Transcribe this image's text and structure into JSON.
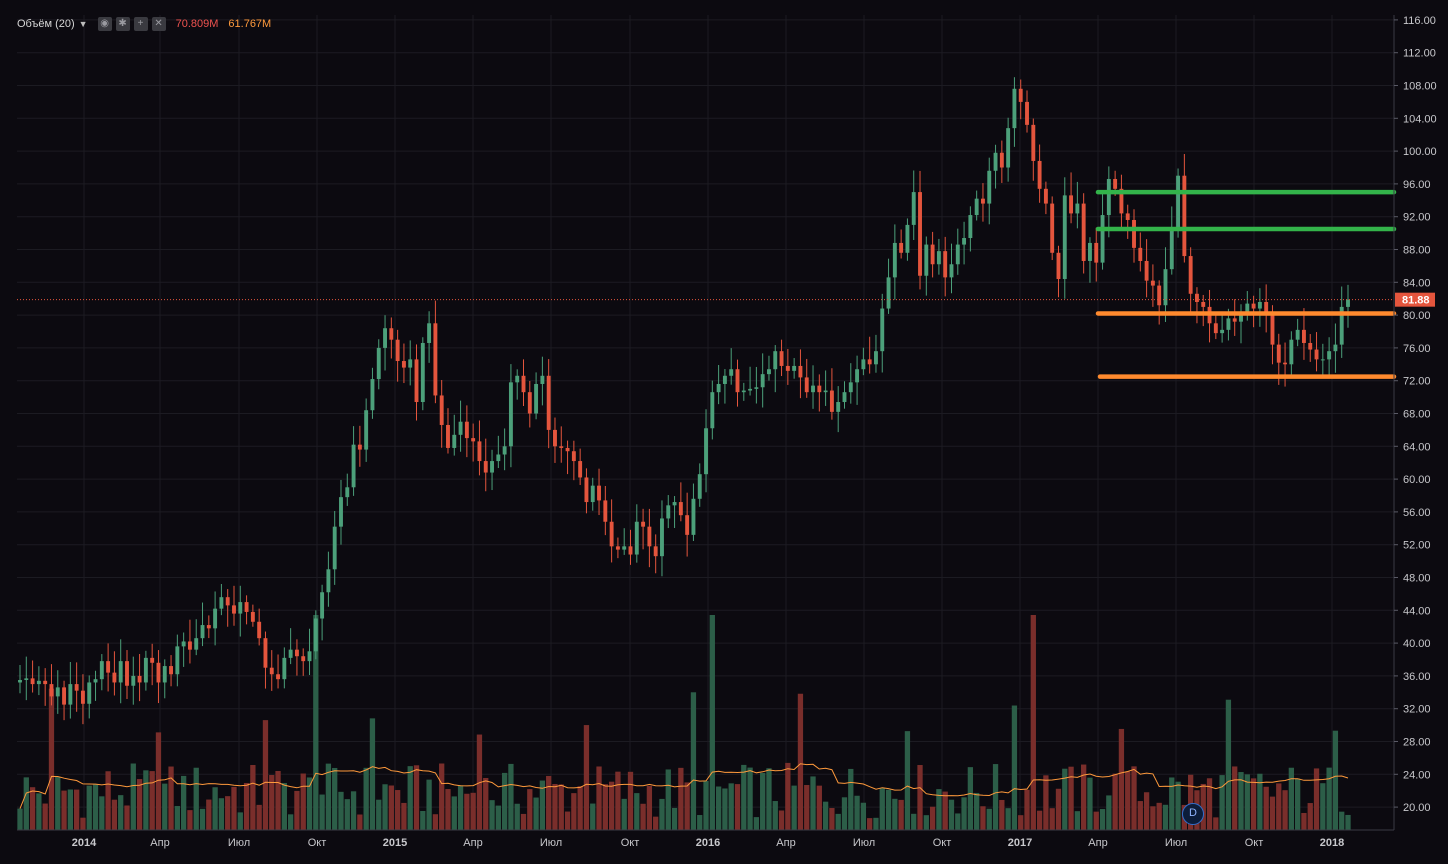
{
  "legend": {
    "indicator": "Объём (20)",
    "buttons": [
      "eye-icon",
      "gear-icon",
      "plus-icon",
      "close-icon"
    ],
    "volume_value": "70.809M",
    "ma_value": "61.767M",
    "volume_color": "#ef5350",
    "ma_color": "#ff9a3c"
  },
  "badge": {
    "label": "D"
  },
  "last_price": {
    "label": "81.88",
    "value": 81.88,
    "color": "#e4553d"
  },
  "chart_data": {
    "type": "candlestick",
    "interval": "weekly",
    "x_ticks": [
      "2014",
      "Апр",
      "Июл",
      "Окт",
      "2015",
      "Апр",
      "Июл",
      "Окт",
      "2016",
      "Апр",
      "Июл",
      "Окт",
      "2017",
      "Апр",
      "Июл",
      "Окт",
      "2018"
    ],
    "y_ticks": [
      "116.00",
      "112.00",
      "108.00",
      "104.00",
      "100.00",
      "96.00",
      "92.00",
      "88.00",
      "84.00",
      "80.00",
      "76.00",
      "72.00",
      "68.00",
      "64.00",
      "60.00",
      "56.00",
      "52.00",
      "48.00",
      "44.00",
      "40.00",
      "36.00",
      "32.00",
      "28.00",
      "24.00",
      "20.00"
    ],
    "ylim": [
      18.5,
      117
    ],
    "colors": {
      "up": "#4ca07a",
      "down": "#e4553d",
      "up_vol": "#2c5e48",
      "down_vol": "#7a2e2b",
      "ma": "#ff9a3c"
    },
    "closes": [
      35.5,
      35.7,
      35.0,
      35.4,
      35.0,
      33.5,
      34.6,
      32.5,
      35.0,
      34.2,
      32.6,
      35.2,
      35.6,
      37.8,
      36.4,
      35.2,
      37.8,
      34.8,
      36.0,
      35.2,
      38.2,
      37.6,
      35.2,
      37.2,
      36.2,
      39.6,
      40.2,
      39.2,
      40.6,
      42.2,
      41.8,
      44.2,
      45.6,
      44.6,
      43.6,
      45.0,
      43.8,
      42.6,
      40.6,
      37.0,
      36.2,
      35.6,
      38.2,
      39.2,
      38.4,
      37.8,
      39.0,
      43.0,
      46.2,
      49.0,
      54.2,
      57.8,
      59.0,
      64.2,
      63.6,
      68.4,
      72.2,
      76.0,
      78.4,
      77.0,
      74.4,
      73.6,
      74.6,
      69.4,
      76.6,
      79.0,
      70.2,
      66.6,
      63.8,
      65.4,
      67.0,
      65.0,
      64.6,
      62.2,
      60.8,
      62.2,
      63.0,
      64.0,
      71.8,
      72.6,
      70.6,
      68.0,
      71.6,
      72.6,
      66.0,
      64.0,
      63.8,
      63.4,
      62.2,
      60.2,
      57.2,
      59.2,
      57.4,
      54.8,
      51.8,
      51.4,
      51.8,
      50.8,
      54.8,
      54.2,
      51.8,
      50.6,
      55.2,
      56.8,
      57.2,
      55.6,
      53.2,
      57.6,
      60.6,
      66.2,
      70.6,
      71.6,
      72.6,
      73.4,
      70.6,
      70.8,
      71.0,
      71.2,
      72.8,
      73.4,
      75.6,
      73.8,
      73.2,
      73.8,
      72.4,
      70.6,
      71.4,
      70.6,
      70.8,
      68.2,
      69.4,
      70.6,
      71.8,
      73.4,
      74.6,
      74.0,
      75.6,
      80.8,
      84.6,
      88.8,
      87.6,
      91.0,
      95.0,
      84.8,
      88.6,
      86.2,
      87.8,
      84.6,
      86.2,
      88.6,
      89.4,
      92.2,
      94.2,
      93.6,
      97.6,
      99.8,
      98.0,
      102.8,
      107.6,
      106.0,
      103.2,
      98.8,
      95.4,
      93.6,
      87.6,
      84.4,
      94.6,
      92.4,
      93.6,
      86.6,
      88.8,
      86.4,
      92.2,
      96.6,
      95.4,
      92.4,
      91.6,
      88.2,
      86.6,
      84.2,
      83.6,
      81.2,
      85.6,
      90.6,
      97.0,
      87.2,
      82.6,
      81.6,
      81.0,
      79.0,
      77.8,
      78.2,
      79.6,
      79.2,
      80.4,
      81.4,
      80.8,
      81.6,
      80.4,
      76.4,
      74.2,
      74.0,
      77.0,
      78.2,
      76.6,
      75.8,
      74.6,
      74.6,
      75.6,
      76.4,
      81.0,
      81.9
    ],
    "series": [
      {
        "name": "Объём",
        "value": "70.809M"
      },
      {
        "name": "MA",
        "value": "61.767M"
      }
    ],
    "horizontal_levels": [
      {
        "price": 95.0,
        "color": "green"
      },
      {
        "price": 90.5,
        "color": "green"
      },
      {
        "price": 80.2,
        "color": "orange"
      },
      {
        "price": 72.5,
        "color": "orange"
      }
    ],
    "grid": true
  }
}
